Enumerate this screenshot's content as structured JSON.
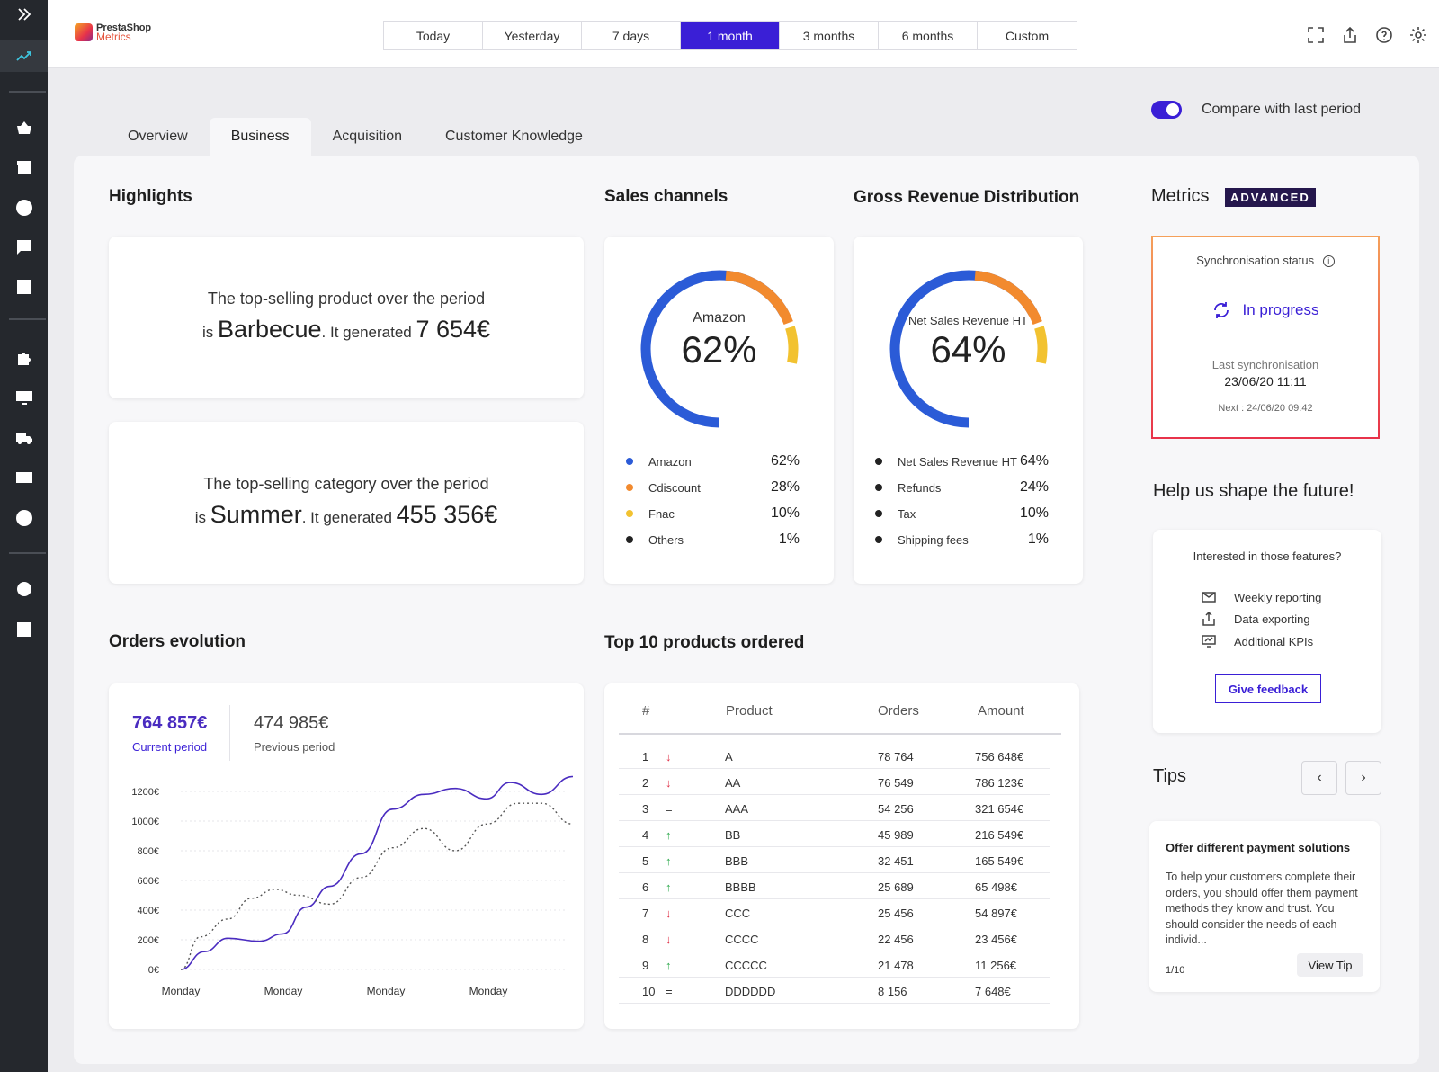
{
  "app": {
    "logo_line1": "PrestaShop",
    "logo_line2": "Metrics"
  },
  "periods": [
    "Today",
    "Yesterday",
    "7 days",
    "1 month",
    "3 months",
    "6 months",
    "Custom"
  ],
  "active_period": "1 month",
  "tabs": [
    "Overview",
    "Business",
    "Acquisition",
    "Customer Knowledge"
  ],
  "active_tab": "Business",
  "compare": {
    "label": "Compare with last period",
    "enabled": true
  },
  "highlights": {
    "title": "Highlights",
    "product": {
      "line1": "The top-selling product over the period",
      "is": "is",
      "name": "Barbecue",
      "generated": ". It generated",
      "amount": "7 654€"
    },
    "category": {
      "line1": "The top-selling category over the period",
      "is": "is",
      "name": "Summer",
      "generated": ". It generated",
      "amount": "455 356€"
    }
  },
  "sales_channels": {
    "title": "Sales channels",
    "center_label": "Amazon",
    "center_value": "62%",
    "items": [
      {
        "name": "Amazon",
        "value": "62%",
        "color": "#2b5bd7"
      },
      {
        "name": "Cdiscount",
        "value": "28%",
        "color": "#f28a2e"
      },
      {
        "name": "Fnac",
        "value": "10%",
        "color": "#f2c230"
      },
      {
        "name": "Others",
        "value": "1%",
        "color": "#222222"
      }
    ]
  },
  "gross_revenue": {
    "title": "Gross Revenue Distribution",
    "center_label": "Net Sales Revenue HT",
    "center_value": "64%",
    "items": [
      {
        "name": "Net Sales Revenue HT",
        "value": "64%",
        "color": "#222222"
      },
      {
        "name": "Refunds",
        "value": "24%",
        "color": "#222222"
      },
      {
        "name": "Tax",
        "value": "10%",
        "color": "#222222"
      },
      {
        "name": "Shipping fees",
        "value": "1%",
        "color": "#222222"
      }
    ]
  },
  "orders": {
    "title": "Orders evolution",
    "current_value": "764 857€",
    "current_label": "Current period",
    "previous_value": "474 985€",
    "previous_label": "Previous period",
    "chart_data": {
      "type": "line",
      "y_ticks": [
        "1200€",
        "1000€",
        "800€",
        "600€",
        "400€",
        "200€",
        "0€"
      ],
      "x_ticks": [
        "Monday",
        "Monday",
        "Monday",
        "Monday"
      ],
      "ylim": [
        0,
        1200
      ],
      "series": [
        {
          "style": "solid",
          "color": "#4a2cc0",
          "points": [
            [
              0,
              0
            ],
            [
              0.06,
              120
            ],
            [
              0.12,
              210
            ],
            [
              0.2,
              190
            ],
            [
              0.26,
              240
            ],
            [
              0.32,
              420
            ],
            [
              0.38,
              560
            ],
            [
              0.46,
              780
            ],
            [
              0.54,
              1080
            ],
            [
              0.62,
              1180
            ],
            [
              0.7,
              1220
            ],
            [
              0.78,
              1150
            ],
            [
              0.84,
              1260
            ],
            [
              0.92,
              1180
            ],
            [
              1,
              1300
            ]
          ]
        },
        {
          "style": "dashed",
          "color": "#555555",
          "points": [
            [
              0,
              0
            ],
            [
              0.05,
              220
            ],
            [
              0.12,
              340
            ],
            [
              0.18,
              480
            ],
            [
              0.24,
              540
            ],
            [
              0.3,
              500
            ],
            [
              0.38,
              440
            ],
            [
              0.46,
              620
            ],
            [
              0.54,
              820
            ],
            [
              0.62,
              950
            ],
            [
              0.7,
              800
            ],
            [
              0.78,
              980
            ],
            [
              0.86,
              1120
            ],
            [
              0.92,
              1120
            ],
            [
              1,
              980
            ]
          ]
        }
      ]
    }
  },
  "top_products": {
    "title": "Top 10 products ordered",
    "headers": {
      "rank": "#",
      "product": "Product",
      "orders": "Orders",
      "amount": "Amount"
    },
    "rows": [
      {
        "rank": "1",
        "trend": "↓",
        "trend_color": "#e0334a",
        "product": "A",
        "orders": "78 764",
        "amount": "756 648€"
      },
      {
        "rank": "2",
        "trend": "↓",
        "trend_color": "#e0334a",
        "product": "AA",
        "orders": "76 549",
        "amount": "786 123€"
      },
      {
        "rank": "3",
        "trend": "=",
        "trend_color": "#333333",
        "product": "AAA",
        "orders": "54 256",
        "amount": "321 654€"
      },
      {
        "rank": "4",
        "trend": "↑",
        "trend_color": "#2aa84a",
        "product": "BB",
        "orders": "45 989",
        "amount": "216 549€"
      },
      {
        "rank": "5",
        "trend": "↑",
        "trend_color": "#2aa84a",
        "product": "BBB",
        "orders": "32 451",
        "amount": "165 549€"
      },
      {
        "rank": "6",
        "trend": "↑",
        "trend_color": "#2aa84a",
        "product": "BBBB",
        "orders": "25 689",
        "amount": "65 498€"
      },
      {
        "rank": "7",
        "trend": "↓",
        "trend_color": "#e0334a",
        "product": "CCC",
        "orders": "25 456",
        "amount": "54 897€"
      },
      {
        "rank": "8",
        "trend": "↓",
        "trend_color": "#e0334a",
        "product": "CCCC",
        "orders": "22 456",
        "amount": "23 456€"
      },
      {
        "rank": "9",
        "trend": "↑",
        "trend_color": "#2aa84a",
        "product": "CCCCC",
        "orders": "21 478",
        "amount": "11 256€"
      },
      {
        "rank": "10",
        "trend": "=",
        "trend_color": "#333333",
        "product": "DDDDDD",
        "orders": "8 156",
        "amount": "7 648€"
      }
    ]
  },
  "metrics": {
    "title": "Metrics",
    "badge": "ADVANCED",
    "sync": {
      "label": "Synchronisation status",
      "status": "In progress",
      "last_label": "Last synchronisation",
      "last_value": "23/06/20 11:11",
      "next": "Next : 24/06/20 09:42"
    },
    "feedback": {
      "title": "Help us shape the future!",
      "question": "Interested in those features?",
      "features": [
        "Weekly reporting",
        "Data exporting",
        "Additional KPIs"
      ],
      "button": "Give feedback"
    },
    "tips": {
      "title": "Tips",
      "card_title": "Offer different payment solutions",
      "card_text": "To help your customers complete their orders, you should offer them payment methods they know and trust. You should consider the needs of each individ...",
      "counter": "1/10",
      "button": "View Tip"
    }
  },
  "colors": {
    "accent": "#3a1fd6",
    "amazon_blue": "#2b5bd7",
    "orange": "#f28a2e",
    "yellow": "#f2c230"
  }
}
